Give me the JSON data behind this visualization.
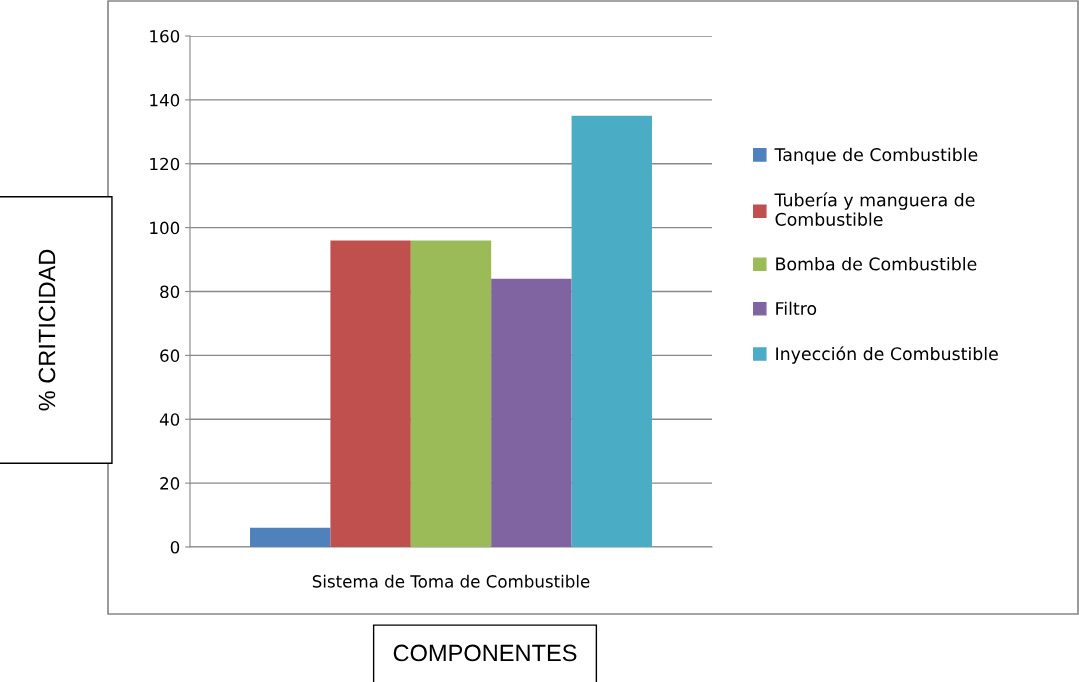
{
  "chart_data": {
    "type": "bar",
    "xlabel": "COMPONENTES",
    "ylabel": "% CRITICIDAD",
    "categories": [
      "Sistema de Toma de Combustible"
    ],
    "series": [
      {
        "name": "Tanque de Combustible",
        "color": "#4f81bd",
        "values": [
          6
        ]
      },
      {
        "name": "Tubería y manguera de\nCombustible",
        "color": "#c0504d",
        "values": [
          96
        ]
      },
      {
        "name": "Bomba de Combustible",
        "color": "#9bbb59",
        "values": [
          96
        ]
      },
      {
        "name": "Filtro",
        "color": "#8064a2",
        "values": [
          84
        ]
      },
      {
        "name": "Inyección de Combustible",
        "color": "#4bacc6",
        "values": [
          135
        ]
      }
    ],
    "ylim": [
      0,
      160
    ],
    "yticks": [
      0,
      20,
      40,
      60,
      80,
      100,
      120,
      140,
      160
    ],
    "grid": "y",
    "legend": "right"
  }
}
